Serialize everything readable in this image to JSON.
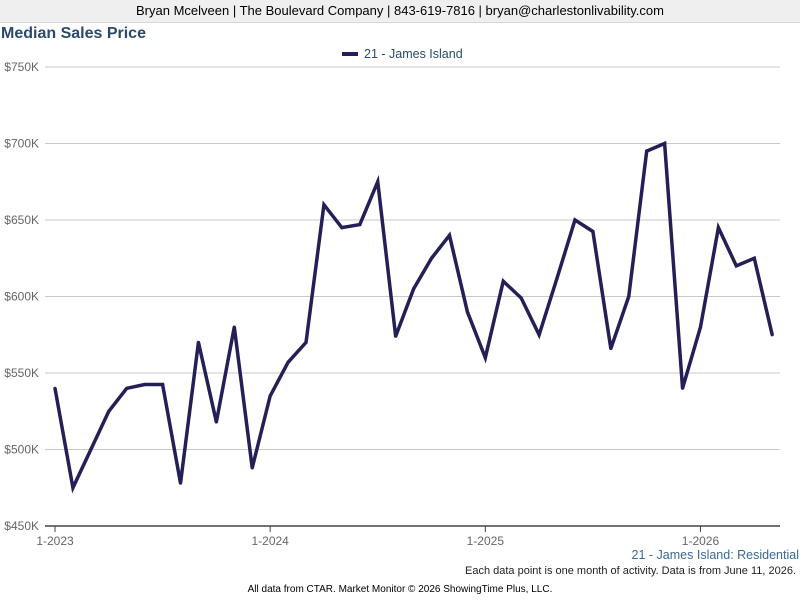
{
  "header": {
    "contact": "Bryan Mcelveen | The Boulevard Company | 843-619-7816 | bryan@charlestonlivability.com"
  },
  "chart_data": {
    "type": "line",
    "title": "Median Sales Price",
    "subtitle": "21 - James Island: Residential",
    "note": "Each data point is one month of activity. Data is from June 11, 2026.",
    "footer": "All data from CTAR. Market Monitor © 2026 ShowingTime Plus, LLC.",
    "ylim": [
      450000,
      750000
    ],
    "y_ticks": [
      {
        "value": 450000,
        "label": "$450K"
      },
      {
        "value": 500000,
        "label": "$500K"
      },
      {
        "value": 550000,
        "label": "$550K"
      },
      {
        "value": 600000,
        "label": "$600K"
      },
      {
        "value": 650000,
        "label": "$650K"
      },
      {
        "value": 700000,
        "label": "$700K"
      },
      {
        "value": 750000,
        "label": "$750K"
      }
    ],
    "x_ticks": [
      {
        "month": "2023-01",
        "label": "1-2023"
      },
      {
        "month": "2024-01",
        "label": "1-2024"
      },
      {
        "month": "2025-01",
        "label": "1-2025"
      },
      {
        "month": "2026-01",
        "label": "1-2026"
      }
    ],
    "grid": true,
    "legend_position": "top-center",
    "colors": {
      "series": "#242057",
      "grid": "#c8c8c8",
      "axis": "#666666"
    },
    "series": [
      {
        "name": "21 - James Island",
        "points": [
          {
            "month": "2023-01",
            "value": 540000
          },
          {
            "month": "2023-02",
            "value": 475000
          },
          {
            "month": "2023-03",
            "value": 500000
          },
          {
            "month": "2023-04",
            "value": 525000
          },
          {
            "month": "2023-05",
            "value": 540000
          },
          {
            "month": "2023-06",
            "value": 542500
          },
          {
            "month": "2023-07",
            "value": 542500
          },
          {
            "month": "2023-08",
            "value": 478000
          },
          {
            "month": "2023-09",
            "value": 570000
          },
          {
            "month": "2023-10",
            "value": 518000
          },
          {
            "month": "2023-11",
            "value": 580000
          },
          {
            "month": "2023-12",
            "value": 488000
          },
          {
            "month": "2024-01",
            "value": 535000
          },
          {
            "month": "2024-02",
            "value": 557000
          },
          {
            "month": "2024-03",
            "value": 570000
          },
          {
            "month": "2024-04",
            "value": 660000
          },
          {
            "month": "2024-05",
            "value": 645000
          },
          {
            "month": "2024-06",
            "value": 647000
          },
          {
            "month": "2024-07",
            "value": 675000
          },
          {
            "month": "2024-08",
            "value": 574000
          },
          {
            "month": "2024-09",
            "value": 605000
          },
          {
            "month": "2024-10",
            "value": 625000
          },
          {
            "month": "2024-11",
            "value": 640000
          },
          {
            "month": "2024-12",
            "value": 590000
          },
          {
            "month": "2025-01",
            "value": 560000
          },
          {
            "month": "2025-02",
            "value": 610000
          },
          {
            "month": "2025-03",
            "value": 599000
          },
          {
            "month": "2025-04",
            "value": 575000
          },
          {
            "month": "2025-05",
            "value": 612000
          },
          {
            "month": "2025-06",
            "value": 650000
          },
          {
            "month": "2025-07",
            "value": 642500
          },
          {
            "month": "2025-08",
            "value": 566000
          },
          {
            "month": "2025-09",
            "value": 600000
          },
          {
            "month": "2025-10",
            "value": 695000
          },
          {
            "month": "2025-11",
            "value": 700000
          },
          {
            "month": "2025-12",
            "value": 540000
          },
          {
            "month": "2026-01",
            "value": 580000
          },
          {
            "month": "2026-02",
            "value": 645000
          },
          {
            "month": "2026-03",
            "value": 620000
          },
          {
            "month": "2026-04",
            "value": 625000
          },
          {
            "month": "2026-05",
            "value": 575000
          }
        ]
      }
    ]
  }
}
